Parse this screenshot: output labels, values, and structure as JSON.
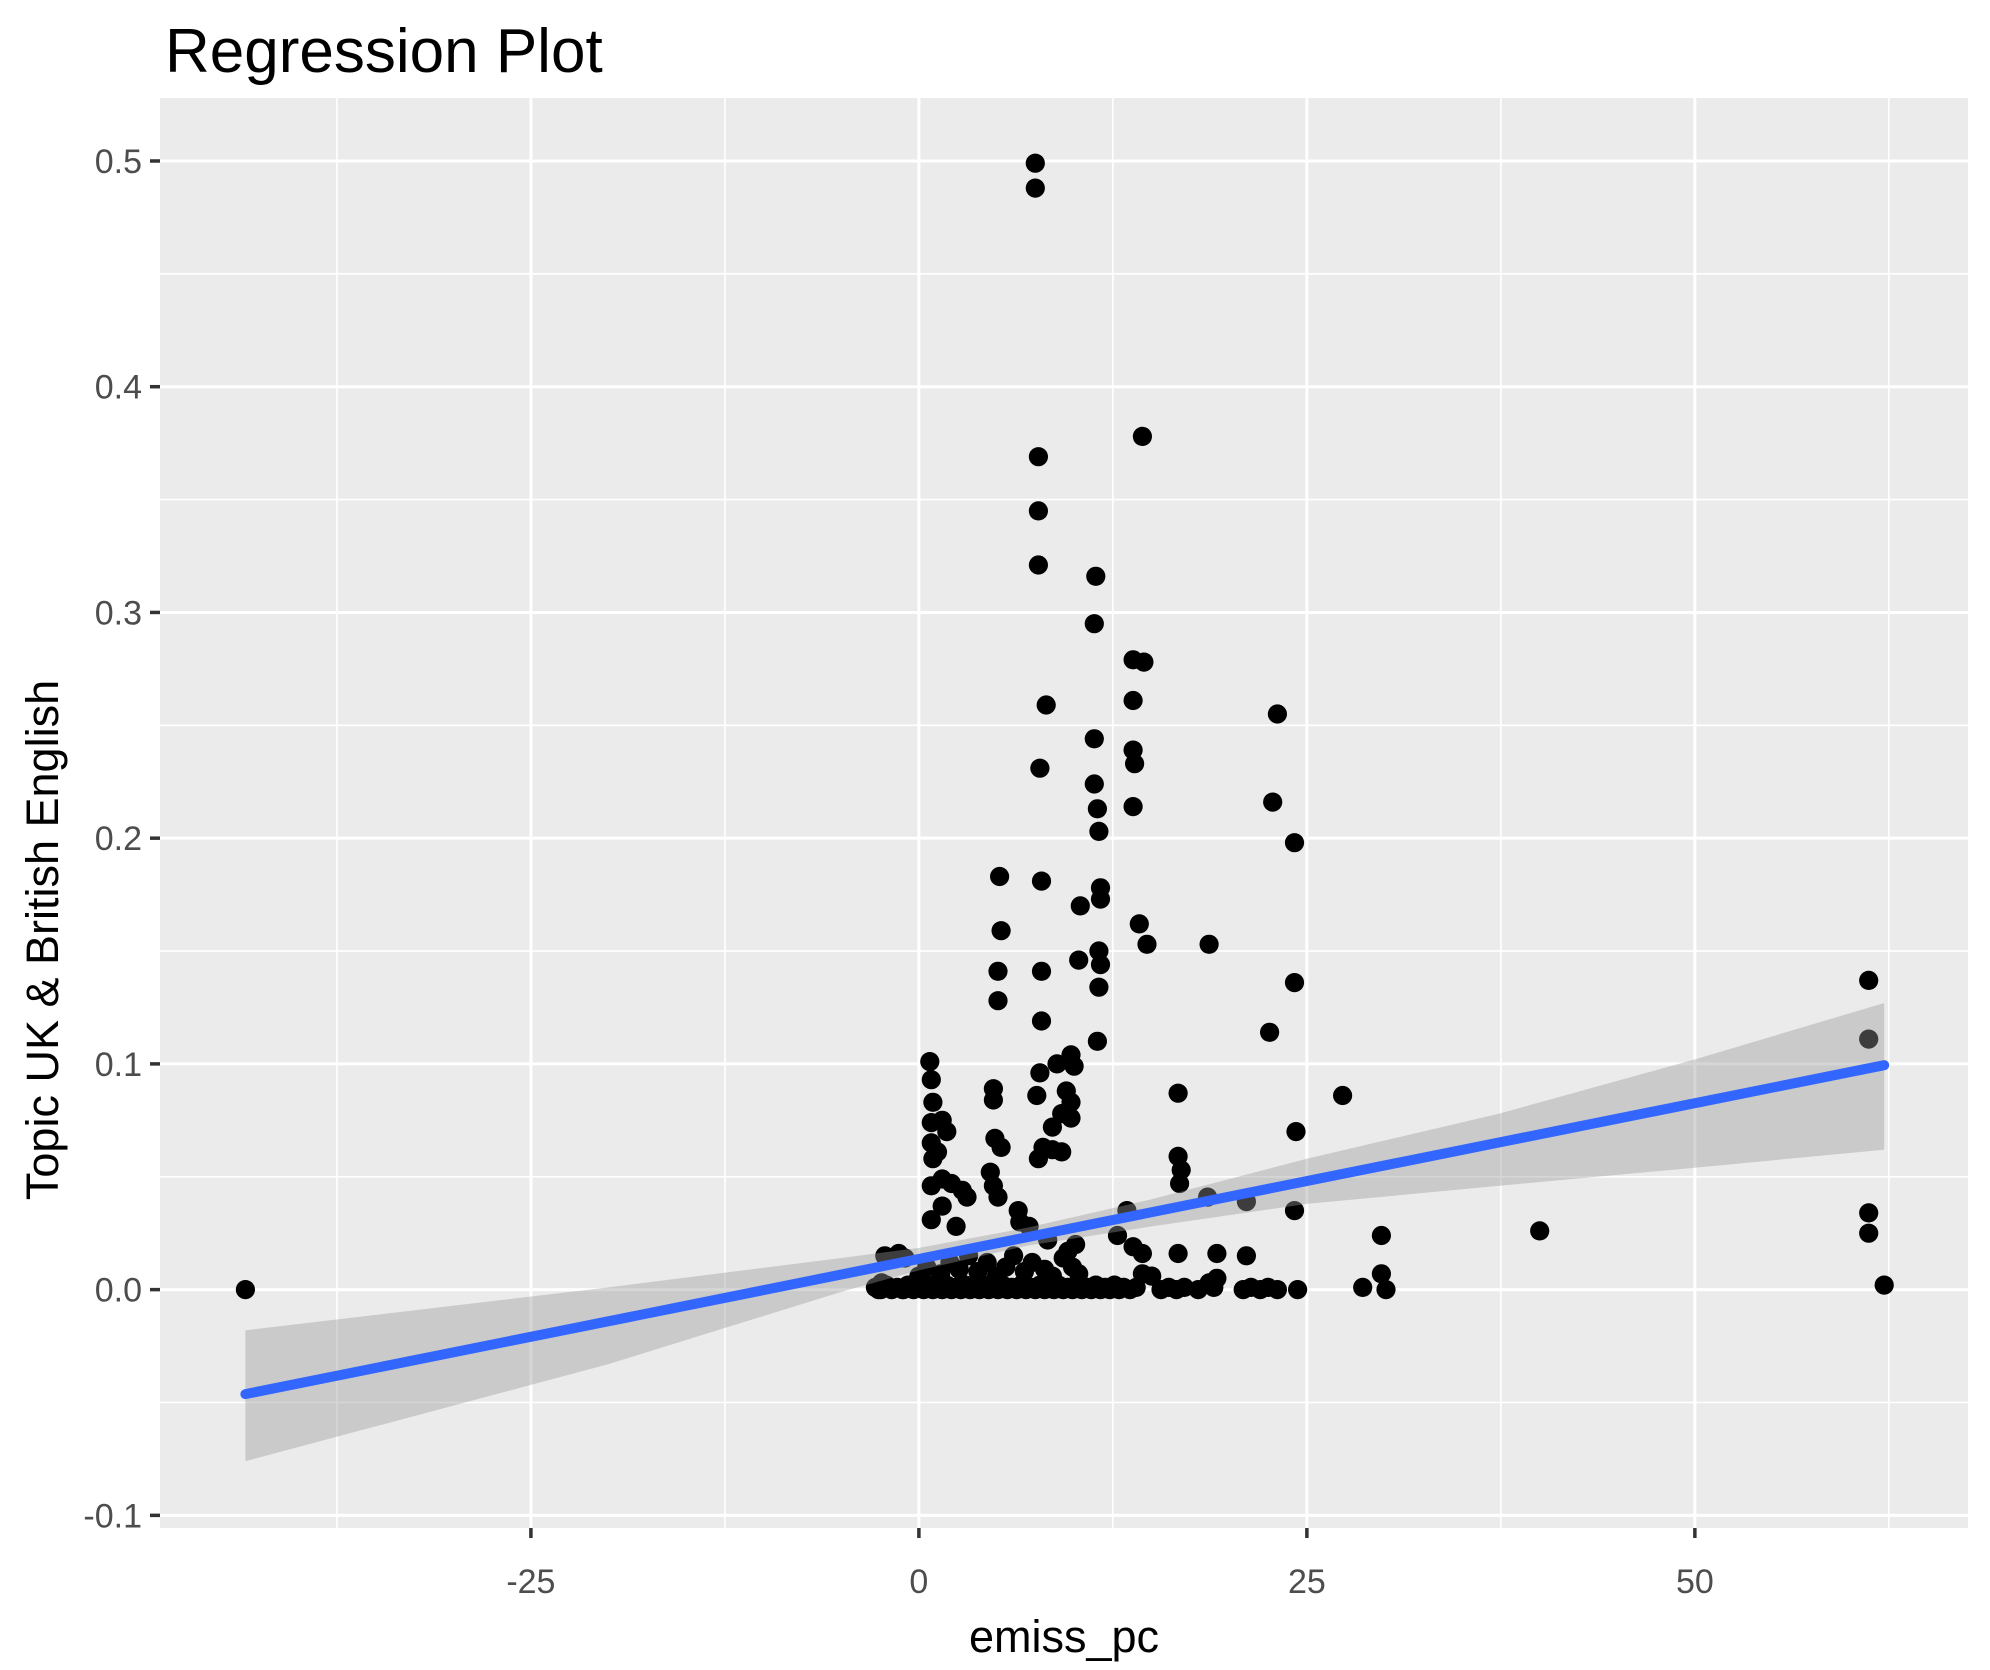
{
  "title": "Regression Plot",
  "x_axis": {
    "label": "emiss_pc",
    "tick_labels": [
      "-25",
      "0",
      "25",
      "50"
    ],
    "tick_values": [
      -25,
      0,
      25,
      50
    ],
    "minor_tick_values": [
      -37.5,
      -12.5,
      12.5,
      37.5,
      62.5
    ],
    "domain": [
      -48.9,
      67.6
    ]
  },
  "y_axis": {
    "label": "Topic UK & British English",
    "tick_labels": [
      "-0.1",
      "0.0",
      "0.1",
      "0.2",
      "0.3",
      "0.4",
      "0.5"
    ],
    "tick_values": [
      -0.1,
      0,
      0.1,
      0.2,
      0.3,
      0.4,
      0.5
    ],
    "minor_tick_values": [
      -0.05,
      0.05,
      0.15,
      0.25,
      0.35,
      0.45
    ],
    "domain": [
      -0.1056,
      0.5279
    ]
  },
  "colors": {
    "panel": "#EBEBEB",
    "grid": "#FFFFFF",
    "point": "#000000",
    "smooth_line": "#3366FF",
    "ribbon": "rgba(153,153,153,0.4)",
    "tick_text": "#4D4D4D",
    "tick_mark": "#333333",
    "title_text": "#000000"
  },
  "chart_data": {
    "type": "scatter",
    "title": "Regression Plot",
    "xlabel": "emiss_pc",
    "ylabel": "Topic UK & British English",
    "xlim": [
      -48.9,
      67.6
    ],
    "ylim": [
      -0.1056,
      0.5279
    ],
    "grid": true,
    "legend": "none",
    "points": [
      [
        -43.4,
        0
      ],
      [
        7.5,
        0.499
      ],
      [
        7.5,
        0.488
      ],
      [
        14.4,
        0.378
      ],
      [
        7.7,
        0.369
      ],
      [
        7.7,
        0.345
      ],
      [
        7.7,
        0.321
      ],
      [
        11.4,
        0.316
      ],
      [
        11.3,
        0.295
      ],
      [
        13.8,
        0.279
      ],
      [
        14.5,
        0.278
      ],
      [
        13.8,
        0.261
      ],
      [
        8.2,
        0.259
      ],
      [
        23.1,
        0.255
      ],
      [
        11.3,
        0.244
      ],
      [
        13.8,
        0.239
      ],
      [
        13.9,
        0.233
      ],
      [
        7.8,
        0.231
      ],
      [
        11.3,
        0.224
      ],
      [
        22.8,
        0.216
      ],
      [
        13.8,
        0.214
      ],
      [
        11.5,
        0.213
      ],
      [
        11.6,
        0.203
      ],
      [
        24.2,
        0.198
      ],
      [
        5.2,
        0.183
      ],
      [
        7.9,
        0.181
      ],
      [
        11.7,
        0.178
      ],
      [
        11.7,
        0.173
      ],
      [
        10.4,
        0.17
      ],
      [
        14.2,
        0.162
      ],
      [
        5.3,
        0.159
      ],
      [
        14.7,
        0.153
      ],
      [
        18.7,
        0.153
      ],
      [
        11.6,
        0.15
      ],
      [
        10.3,
        0.146
      ],
      [
        11.7,
        0.144
      ],
      [
        5.1,
        0.141
      ],
      [
        7.9,
        0.141
      ],
      [
        61.2,
        0.137
      ],
      [
        24.2,
        0.136
      ],
      [
        11.6,
        0.134
      ],
      [
        5.1,
        0.128
      ],
      [
        7.9,
        0.119
      ],
      [
        22.6,
        0.114
      ],
      [
        61.2,
        0.111
      ],
      [
        11.5,
        0.11
      ],
      [
        9.8,
        0.104
      ],
      [
        0.7,
        0.101
      ],
      [
        8.9,
        0.1
      ],
      [
        10,
        0.099
      ],
      [
        7.8,
        0.096
      ],
      [
        0.8,
        0.093
      ],
      [
        4.8,
        0.089
      ],
      [
        9.5,
        0.088
      ],
      [
        16.7,
        0.087
      ],
      [
        7.6,
        0.086
      ],
      [
        27.3,
        0.086
      ],
      [
        4.8,
        0.084
      ],
      [
        9.8,
        0.083
      ],
      [
        0.9,
        0.083
      ],
      [
        9.2,
        0.078
      ],
      [
        9.8,
        0.076
      ],
      [
        1.5,
        0.075
      ],
      [
        0.8,
        0.074
      ],
      [
        8.6,
        0.072
      ],
      [
        1.8,
        0.07
      ],
      [
        24.3,
        0.07
      ],
      [
        4.9,
        0.067
      ],
      [
        0.8,
        0.065
      ],
      [
        5.3,
        0.063
      ],
      [
        8,
        0.063
      ],
      [
        8.6,
        0.062
      ],
      [
        9.2,
        0.061
      ],
      [
        1.2,
        0.061
      ],
      [
        16.7,
        0.059
      ],
      [
        0.9,
        0.058
      ],
      [
        7.7,
        0.058
      ],
      [
        16.9,
        0.053
      ],
      [
        4.6,
        0.052
      ],
      [
        1.5,
        0.049
      ],
      [
        16.8,
        0.047
      ],
      [
        2.1,
        0.047
      ],
      [
        0.8,
        0.046
      ],
      [
        4.8,
        0.046
      ],
      [
        2.8,
        0.044
      ],
      [
        18.6,
        0.041
      ],
      [
        5.1,
        0.041
      ],
      [
        3.1,
        0.041
      ],
      [
        21.1,
        0.039
      ],
      [
        1.5,
        0.037
      ],
      [
        13.4,
        0.035
      ],
      [
        24.2,
        0.035
      ],
      [
        6.4,
        0.035
      ],
      [
        61.2,
        0.034
      ],
      [
        0.8,
        0.031
      ],
      [
        6.5,
        0.03
      ],
      [
        7.1,
        0.028
      ],
      [
        2.4,
        0.028
      ],
      [
        40,
        0.026
      ],
      [
        61.2,
        0.025
      ],
      [
        12.8,
        0.024
      ],
      [
        29.8,
        0.024
      ],
      [
        8.3,
        0.022
      ],
      [
        10.1,
        0.02
      ],
      [
        13.8,
        0.019
      ],
      [
        9.6,
        0.017
      ],
      [
        -1.3,
        0.016
      ],
      [
        14.4,
        0.016
      ],
      [
        16.7,
        0.016
      ],
      [
        19.2,
        0.016
      ],
      [
        -2.2,
        0.015
      ],
      [
        3.2,
        0.015
      ],
      [
        6.1,
        0.015
      ],
      [
        21.1,
        0.015
      ],
      [
        -0.9,
        0.014
      ],
      [
        9.3,
        0.014
      ],
      [
        2,
        0.012
      ],
      [
        4.4,
        0.012
      ],
      [
        7.3,
        0.012
      ],
      [
        0.5,
        0.01
      ],
      [
        5.6,
        0.01
      ],
      [
        9.9,
        0.01
      ],
      [
        2.6,
        0.009
      ],
      [
        8.1,
        0.009
      ],
      [
        3.8,
        0.008
      ],
      [
        6.8,
        0.008
      ],
      [
        10.3,
        0.007
      ],
      [
        14.4,
        0.007
      ],
      [
        1.4,
        0.007
      ],
      [
        29.8,
        0.007
      ],
      [
        0,
        0.006
      ],
      [
        5,
        0.006
      ],
      [
        8.6,
        0.006
      ],
      [
        15,
        0.006
      ],
      [
        19.2,
        0.005
      ],
      [
        -2.4,
        0.003
      ],
      [
        18.7,
        0.003
      ],
      [
        62.2,
        0.002
      ],
      [
        -1.9,
        0.001
      ],
      [
        -0.6,
        0.001
      ],
      [
        -2.6,
        0
      ],
      [
        -1,
        0
      ],
      [
        -2.8,
        0.001
      ],
      [
        -2.45,
        0
      ],
      [
        -2.1,
        0.002
      ],
      [
        -1.75,
        0
      ],
      [
        -1.4,
        0.001
      ],
      [
        -1.05,
        0
      ],
      [
        -0.7,
        0.002
      ],
      [
        -0.35,
        0
      ],
      [
        0,
        0.001
      ],
      [
        0.3,
        0
      ],
      [
        0.6,
        0.002
      ],
      [
        0.9,
        0
      ],
      [
        1.2,
        0.001
      ],
      [
        1.5,
        0
      ],
      [
        1.8,
        0.002
      ],
      [
        2.1,
        0
      ],
      [
        2.4,
        0.001
      ],
      [
        2.7,
        0
      ],
      [
        3,
        0.002
      ],
      [
        3.3,
        0
      ],
      [
        3.6,
        0.001
      ],
      [
        3.9,
        0
      ],
      [
        4.2,
        0.002
      ],
      [
        4.5,
        0
      ],
      [
        4.8,
        0.001
      ],
      [
        5.1,
        0
      ],
      [
        5.4,
        0.002
      ],
      [
        5.7,
        0
      ],
      [
        6,
        0.001
      ],
      [
        6.3,
        0
      ],
      [
        6.6,
        0.002
      ],
      [
        6.9,
        0
      ],
      [
        7.2,
        0.001
      ],
      [
        7.5,
        0
      ],
      [
        7.8,
        0.002
      ],
      [
        8.1,
        0
      ],
      [
        8.4,
        0.001
      ],
      [
        8.7,
        0
      ],
      [
        9,
        0.002
      ],
      [
        9.3,
        0
      ],
      [
        9.6,
        0.001
      ],
      [
        9.9,
        0
      ],
      [
        10.2,
        0.002
      ],
      [
        10.5,
        0
      ],
      [
        10.8,
        0.001
      ],
      [
        11.1,
        0
      ],
      [
        11.4,
        0.002
      ],
      [
        11.7,
        0
      ],
      [
        12,
        0.001
      ],
      [
        12.3,
        0
      ],
      [
        12.6,
        0.002
      ],
      [
        12.9,
        0
      ],
      [
        13.2,
        0.001
      ],
      [
        13.6,
        0
      ],
      [
        14,
        0.001
      ],
      [
        15.6,
        0
      ],
      [
        16.1,
        0.001
      ],
      [
        16.6,
        0
      ],
      [
        17.1,
        0.001
      ],
      [
        18,
        0
      ],
      [
        19,
        0.001
      ],
      [
        20.9,
        0
      ],
      [
        21.4,
        0.001
      ],
      [
        22,
        0
      ],
      [
        22.5,
        0.001
      ],
      [
        23.1,
        0
      ],
      [
        24.4,
        0
      ],
      [
        28.6,
        0.001
      ],
      [
        30.1,
        0
      ]
    ],
    "regression": {
      "type": "linear",
      "intercept": 0.0136,
      "slope": 0.00138,
      "x_start": -43.4,
      "x_end": 62.2,
      "confidence_band": [
        {
          "x": -43.4,
          "hi": -0.018,
          "lo": -0.076
        },
        {
          "x": -20,
          "hi": 0.001,
          "lo": -0.033
        },
        {
          "x": -5,
          "hi": 0.014,
          "lo": -0.001
        },
        {
          "x": 0,
          "hi": 0.0185,
          "lo": 0.0085
        },
        {
          "x": 7,
          "hi": 0.0275,
          "lo": 0.0195
        },
        {
          "x": 15,
          "hi": 0.04,
          "lo": 0.028
        },
        {
          "x": 25,
          "hi": 0.058,
          "lo": 0.038
        },
        {
          "x": 37.4,
          "hi": 0.078,
          "lo": 0.046
        },
        {
          "x": 50,
          "hi": 0.102,
          "lo": 0.054
        },
        {
          "x": 62.2,
          "hi": 0.127,
          "lo": 0.062
        }
      ]
    }
  }
}
